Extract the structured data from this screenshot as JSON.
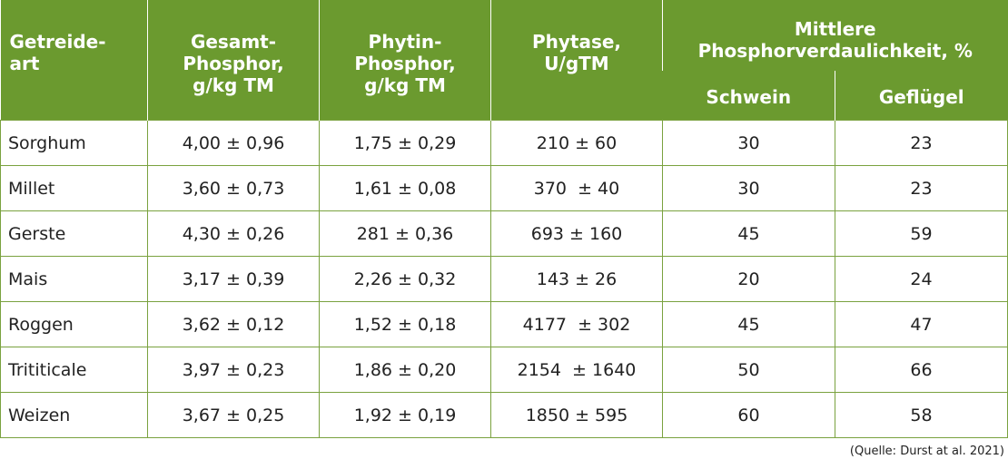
{
  "table": {
    "header": [
      "Getreide-\nart",
      "Gesamt-\nPhosphor,\ng/kg TM",
      "Phytin-\nPhosphor,\ng/kg TM",
      "Phytase,\nU/gTM"
    ],
    "group_header": "Mittlere\nPhosphorverdaulichkeit, %",
    "subheader": [
      "Schwein",
      "Geflügel"
    ],
    "rows": [
      [
        "Sorghum",
        "4,00 ± 0,96",
        "1,75 ± 0,29",
        "210 ± 60",
        "30",
        "23"
      ],
      [
        "Millet",
        "3,60 ± 0,73",
        "1,61 ± 0,08",
        "370  ± 40",
        "30",
        "23"
      ],
      [
        "Gerste",
        "4,30 ± 0,26",
        "281 ± 0,36",
        "693 ± 160",
        "45",
        "59"
      ],
      [
        "Mais",
        "3,17 ± 0,39",
        "2,26 ± 0,32",
        "143 ± 26",
        "20",
        "24"
      ],
      [
        "Roggen",
        "3,62 ± 0,12",
        "1,52 ± 0,18",
        "4177  ± 302",
        "45",
        "47"
      ],
      [
        "Trititicale",
        "3,97 ± 0,23",
        "1,86 ± 0,20",
        "2154  ± 1640",
        "50",
        "66"
      ],
      [
        "Weizen",
        "3,67 ± 0,25",
        "1,92 ± 0,19",
        "1850 ± 595",
        "60",
        "58"
      ]
    ]
  },
  "source": "(Quelle: Durst at al. 2021)"
}
